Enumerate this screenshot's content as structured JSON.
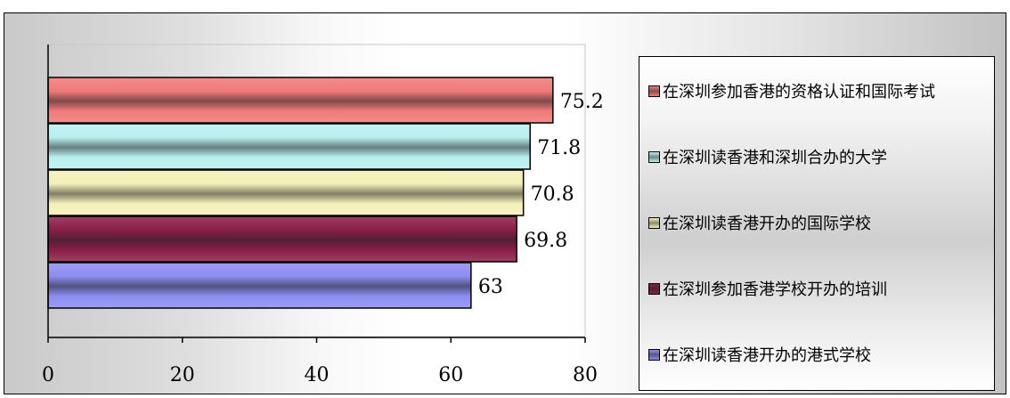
{
  "chart_data": {
    "type": "bar",
    "orientation": "horizontal",
    "xlim": [
      0,
      80
    ],
    "xticks": [
      0,
      20,
      40,
      60,
      80
    ],
    "grid": false,
    "legend_position": "right",
    "series": [
      {
        "name": "在深圳参加香港的资格认证和国际考试",
        "value": 75.2,
        "label": "75.2",
        "color": "#f07a78"
      },
      {
        "name": "在深圳读香港和深圳合办的大学",
        "value": 71.8,
        "label": "71.8",
        "color": "#b8f0f0"
      },
      {
        "name": "在深圳读香港开办的国际学校",
        "value": 70.8,
        "label": "70.8",
        "color": "#f4f0b8"
      },
      {
        "name": "在深圳参加香港学校开办的培训",
        "value": 69.8,
        "label": "69.8",
        "color": "#8a1e48"
      },
      {
        "name": "在深圳读香港开办的港式学校",
        "value": 63,
        "label": "63",
        "color": "#8c8cf2"
      }
    ]
  }
}
